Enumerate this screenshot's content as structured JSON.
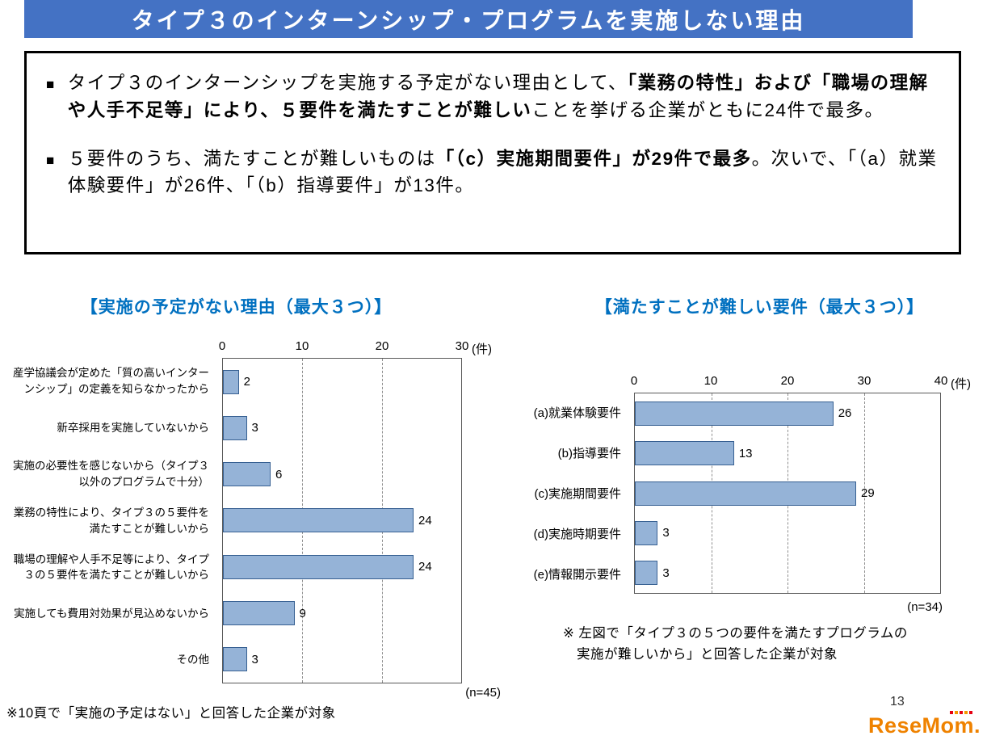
{
  "header": {
    "title": "タイプ３のインターンシップ・プログラムを実施しない理由",
    "bg_color": "#4472C4"
  },
  "summary": {
    "bullet_marker": "■",
    "bullet1": {
      "normal1": "タイプ３のインターンシップを実施する予定がない理由として、",
      "bold1": "「業務の特性」および「職場の理解や人手不足等」により、５要件を満たすことが難しい",
      "normal2": "ことを挙げる企業がともに24件で最多。"
    },
    "bullet2": {
      "normal1": "５要件のうち、満たすことが難しいものは",
      "bold1": "「（c）実施期間要件」が29件で最多",
      "normal2": "。次いで、「（a）就業体験要件」が26件、「（b）指導要件」が13件。"
    }
  },
  "chart_data": [
    {
      "type": "bar",
      "orientation": "horizontal",
      "title": "【実施の予定がない理由（最大３つ）】",
      "title_color": "#0070C0",
      "unit": "(件)",
      "categories": [
        "産学協議会が定めた「質の高いインター\nンシップ」の定義を知らなかったから",
        "新卒採用を実施していないから",
        "実施の必要性を感じないから（タイプ３\n以外のプログラムで十分）",
        "業務の特性により、タイプ３の５要件を\n満たすことが難しいから",
        "職場の理解や人手不足等により、タイプ\n３の５要件を満たすことが難しいから",
        "実施しても費用対効果が見込めないから",
        "その他"
      ],
      "values": [
        2,
        3,
        6,
        24,
        24,
        9,
        3
      ],
      "xlim": [
        0,
        30
      ],
      "ticks": [
        0,
        10,
        20,
        30
      ],
      "grid": "dashed-vertical",
      "sample_note": "(n=45)",
      "bar_color": "#95B3D7",
      "bar_border": "#376092"
    },
    {
      "type": "bar",
      "orientation": "horizontal",
      "title": "【満たすことが難しい要件（最大３つ）】",
      "title_color": "#0070C0",
      "unit": "(件)",
      "categories": [
        "(a)就業体験要件",
        "(b)指導要件",
        "(c)実施期間要件",
        "(d)実施時期要件",
        "(e)情報開示要件"
      ],
      "values": [
        26,
        13,
        29,
        3,
        3
      ],
      "xlim": [
        0,
        40
      ],
      "ticks": [
        0,
        10,
        20,
        30,
        40
      ],
      "grid": "dashed-vertical",
      "sample_note": "(n=34)",
      "bar_color": "#95B3D7",
      "bar_border": "#376092",
      "note": "※ 左図で「タイプ３の５つの要件を満たすプログラムの\n　実施が難しいから」と回答した企業が対象"
    }
  ],
  "footer": {
    "left_note": "※10頁で「実施の予定はない」と回答した企業が対象",
    "page_number": "13",
    "logo_text": "ReseMom."
  }
}
